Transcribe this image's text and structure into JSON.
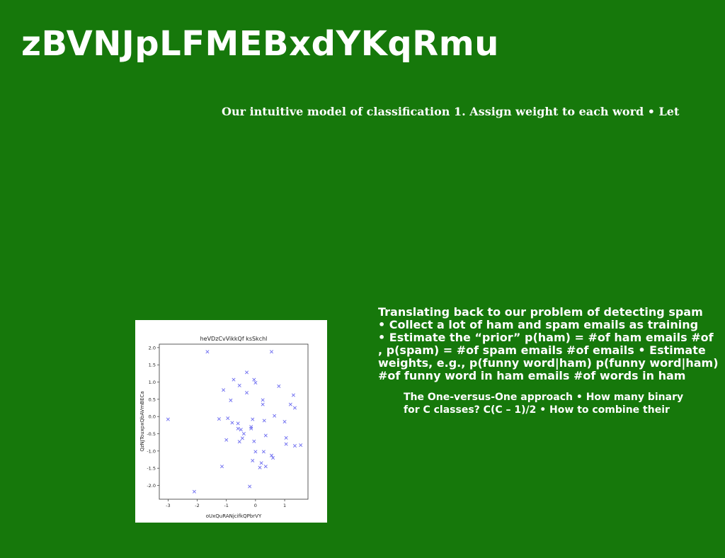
{
  "slide": {
    "title": "zBVNJpLFMEBxdYKqRmu",
    "subtitle": "Our intuitive model of classification 1. Assign weight to each word • Let",
    "para1": [
      "Translating back to our problem of detecting spam",
      "• Collect a lot of ham and spam emails as training",
      "• Estimate the “prior” p(ham) = #of ham emails #of",
      ", p(spam) = #of spam emails #of emails • Estimate",
      "weights, e.g., p(funny word|ham) p(funny word|ham)",
      "#of funny word in ham emails #of words in ham"
    ],
    "para2": [
      "The One-versus-One approach • How many binary",
      "for C classes? C(C – 1)/2 • How to combine their"
    ]
  },
  "chart_data": {
    "type": "scatter",
    "title": "heVDzCvVikkQf ksSkchl",
    "xlabel": "oUxQuRANjcifkQPbrVY",
    "ylabel": "QzNJTouxpxQbAVmBECa",
    "xlim": [
      -3.3,
      1.8
    ],
    "ylim": [
      -2.4,
      2.1
    ],
    "xticks": [
      -3,
      -2,
      -1,
      0,
      1
    ],
    "yticks": [
      -2.0,
      -1.5,
      -1.0,
      -0.5,
      0.0,
      0.5,
      1.0,
      1.5,
      2.0
    ],
    "marker": "x",
    "color": "#6b6bf0",
    "x": [
      -3.0,
      -2.1,
      -1.65,
      -1.25,
      -1.15,
      -1.1,
      -1.0,
      -0.95,
      -0.85,
      -0.8,
      -0.75,
      -0.6,
      -0.6,
      -0.55,
      -0.55,
      -0.5,
      -0.45,
      -0.4,
      -0.3,
      -0.3,
      -0.2,
      -0.15,
      -0.15,
      -0.1,
      -0.1,
      -0.05,
      -0.05,
      0.0,
      0.0,
      0.15,
      0.2,
      0.25,
      0.25,
      0.28,
      0.3,
      0.35,
      0.35,
      0.55,
      0.55,
      0.6,
      0.65,
      0.8,
      1.0,
      1.05,
      1.05,
      1.2,
      1.3,
      1.35,
      1.35,
      1.55
    ],
    "y": [
      -0.08,
      -2.18,
      1.88,
      -0.07,
      -1.45,
      0.77,
      -0.68,
      -0.05,
      0.47,
      -0.18,
      1.07,
      -0.2,
      -0.35,
      -0.73,
      0.9,
      -0.38,
      -0.63,
      -0.5,
      1.28,
      0.69,
      -2.03,
      -0.3,
      -0.35,
      -0.08,
      -1.28,
      -0.72,
      1.07,
      0.98,
      -1.02,
      -1.48,
      -1.35,
      0.48,
      0.35,
      -1.02,
      -0.12,
      -0.55,
      -1.45,
      1.88,
      -1.13,
      -1.2,
      0.02,
      0.88,
      -0.15,
      -0.62,
      -0.8,
      0.35,
      0.62,
      0.25,
      -0.85,
      -0.83
    ]
  }
}
